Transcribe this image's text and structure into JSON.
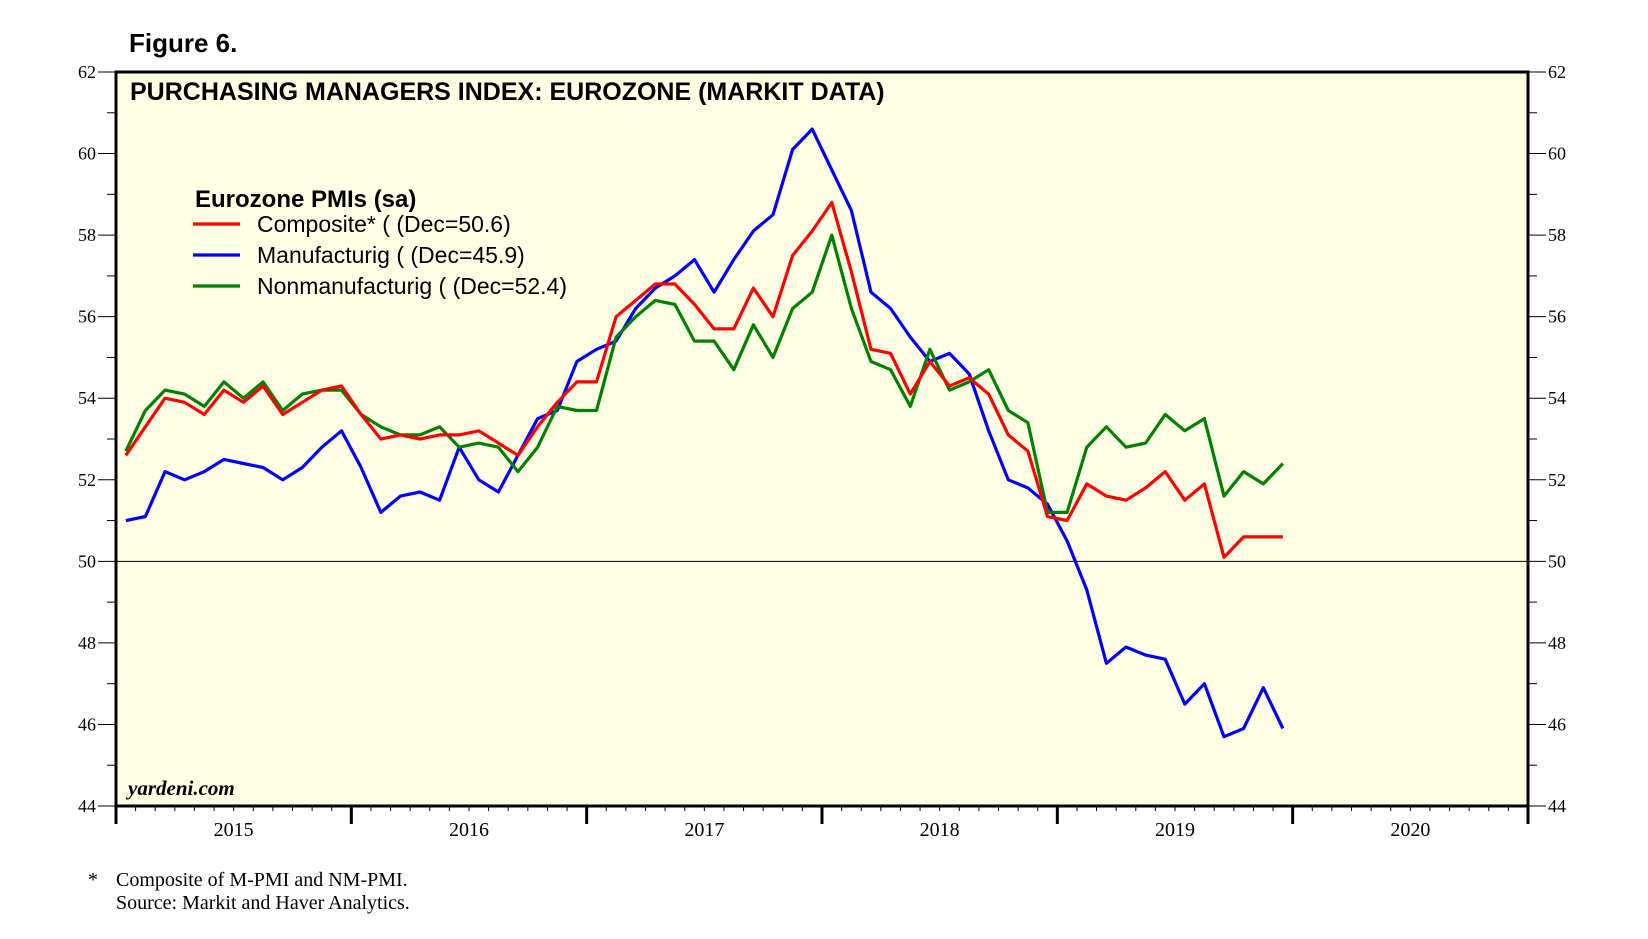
{
  "figure_label": "Figure 6.",
  "footnotes": {
    "star": "*",
    "composite_note": "Composite of M-PMI and NM-PMI.",
    "source": "Source: Markit and Haver Analytics."
  },
  "colors": {
    "plot_background": "#ffffe6",
    "composite": "#ff0000",
    "manufacturing": "#0000ff",
    "nonmanufacturing": "#008000"
  },
  "chart_data": {
    "type": "line",
    "title": "PURCHASING MANAGERS INDEX: EUROZONE (MARKIT DATA)",
    "legend_title": "Eurozone PMIs (sa)",
    "legend_position": "top-left",
    "watermark": "yardeni.com",
    "xlabel": "",
    "ylabel": "",
    "xlim": [
      2015.0,
      2021.0
    ],
    "ylim": [
      44,
      62
    ],
    "y_ticks": [
      44,
      46,
      48,
      50,
      52,
      54,
      56,
      58,
      60,
      62
    ],
    "x_tick_labels": [
      "2015",
      "2016",
      "2017",
      "2018",
      "2019",
      "2020"
    ],
    "reference_line": 50,
    "x_start": 2015.0,
    "x_step_months": 1,
    "series": [
      {
        "key": "composite",
        "name": "Composite* ( (Dec=50.6)",
        "values": [
          52.6,
          53.3,
          54.0,
          53.9,
          53.6,
          54.2,
          53.9,
          54.3,
          53.6,
          53.9,
          54.2,
          54.3,
          53.6,
          53.0,
          53.1,
          53.0,
          53.1,
          53.1,
          53.2,
          52.9,
          52.6,
          53.3,
          53.9,
          54.4,
          54.4,
          56.0,
          56.4,
          56.8,
          56.8,
          56.3,
          55.7,
          55.7,
          56.7,
          56.0,
          57.5,
          58.1,
          58.8,
          57.1,
          55.2,
          55.1,
          54.1,
          54.9,
          54.3,
          54.5,
          54.1,
          53.1,
          52.7,
          51.1,
          51.0,
          51.9,
          51.6,
          51.5,
          51.8,
          52.2,
          51.5,
          51.9,
          50.1,
          50.6,
          50.6,
          50.6
        ]
      },
      {
        "key": "manufacturing",
        "name": "Manufacturig ( (Dec=45.9)",
        "values": [
          51.0,
          51.1,
          52.2,
          52.0,
          52.2,
          52.5,
          52.4,
          52.3,
          52.0,
          52.3,
          52.8,
          53.2,
          52.3,
          51.2,
          51.6,
          51.7,
          51.5,
          52.8,
          52.0,
          51.7,
          52.6,
          53.5,
          53.7,
          54.9,
          55.2,
          55.4,
          56.2,
          56.7,
          57.0,
          57.4,
          56.6,
          57.4,
          58.1,
          58.5,
          60.1,
          60.6,
          59.6,
          58.6,
          56.6,
          56.2,
          55.5,
          54.9,
          55.1,
          54.6,
          53.2,
          52.0,
          51.8,
          51.4,
          50.5,
          49.3,
          47.5,
          47.9,
          47.7,
          47.6,
          46.5,
          47.0,
          45.7,
          45.9,
          46.9,
          45.9
        ]
      },
      {
        "key": "nonmanufacturing",
        "name": "Nonmanufacturig ( (Dec=52.4)",
        "values": [
          52.7,
          53.7,
          54.2,
          54.1,
          53.8,
          54.4,
          54.0,
          54.4,
          53.7,
          54.1,
          54.2,
          54.2,
          53.6,
          53.3,
          53.1,
          53.1,
          53.3,
          52.8,
          52.9,
          52.8,
          52.2,
          52.8,
          53.8,
          53.7,
          53.7,
          55.5,
          56.0,
          56.4,
          56.3,
          55.4,
          55.4,
          54.7,
          55.8,
          55.0,
          56.2,
          56.6,
          58.0,
          56.2,
          54.9,
          54.7,
          53.8,
          55.2,
          54.2,
          54.4,
          54.7,
          53.7,
          53.4,
          51.2,
          51.2,
          52.8,
          53.3,
          52.8,
          52.9,
          53.6,
          53.2,
          53.5,
          51.6,
          52.2,
          51.9,
          52.4
        ]
      }
    ]
  }
}
